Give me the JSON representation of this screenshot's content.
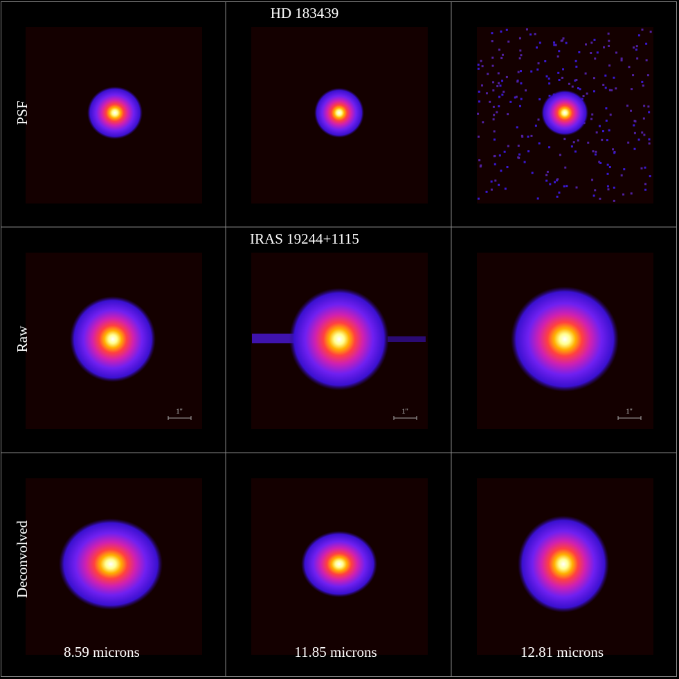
{
  "row_titles": [
    "HD 183439",
    "IRAS 19244+1115"
  ],
  "row_labels": [
    "PSF",
    "Raw",
    "Deconvolved"
  ],
  "column_labels": [
    "8.59 microns",
    "11.85 microns",
    "12.81 microns"
  ],
  "scale_bar_labels": [
    "1''",
    "1''",
    "1''"
  ]
}
